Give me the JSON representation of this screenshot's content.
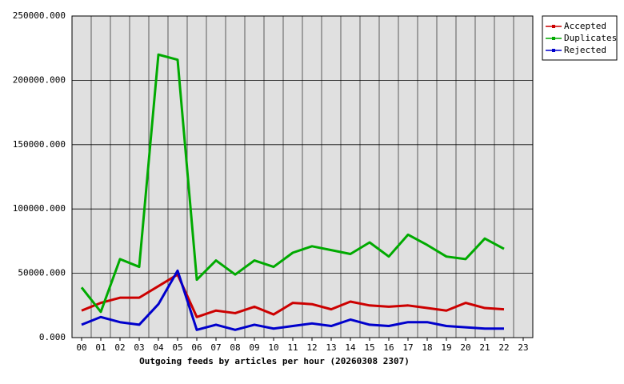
{
  "chart_data": {
    "type": "line",
    "title": "Outgoing feeds by articles per hour (20260308 2307)",
    "categories": [
      "00",
      "01",
      "02",
      "03",
      "04",
      "05",
      "06",
      "07",
      "08",
      "09",
      "10",
      "11",
      "12",
      "13",
      "14",
      "15",
      "16",
      "17",
      "18",
      "19",
      "20",
      "21",
      "22",
      "23"
    ],
    "series": [
      {
        "name": "Accepted",
        "color": "#cc0000",
        "values": [
          21000,
          27000,
          31000,
          31000,
          40000,
          49000,
          16000,
          21000,
          19000,
          24000,
          18000,
          27000,
          26000,
          22000,
          28000,
          25000,
          24000,
          25000,
          23000,
          21000,
          27000,
          23000,
          22000,
          null
        ]
      },
      {
        "name": "Duplicates",
        "color": "#00aa00",
        "values": [
          39000,
          20000,
          61000,
          55000,
          220000,
          216000,
          45000,
          60000,
          49000,
          60000,
          55000,
          66000,
          71000,
          68000,
          65000,
          74000,
          63000,
          80000,
          72000,
          63000,
          61000,
          77000,
          69000,
          null
        ]
      },
      {
        "name": "Rejected",
        "color": "#0000cc",
        "values": [
          10000,
          16000,
          12000,
          10000,
          26000,
          52000,
          6000,
          10000,
          6000,
          10000,
          7000,
          9000,
          11000,
          9000,
          14000,
          10000,
          9000,
          12000,
          12000,
          9000,
          8000,
          7000,
          7000,
          null
        ]
      }
    ],
    "ylim": [
      0,
      250000
    ],
    "yticks": [
      {
        "value": 0,
        "label": "0.000"
      },
      {
        "value": 50000,
        "label": "50000.000"
      },
      {
        "value": 100000,
        "label": "100000.000"
      },
      {
        "value": 150000,
        "label": "150000.000"
      },
      {
        "value": 200000,
        "label": "200000.000"
      },
      {
        "value": 250000,
        "label": "250000.000"
      }
    ],
    "grid": true,
    "legend": "right"
  }
}
